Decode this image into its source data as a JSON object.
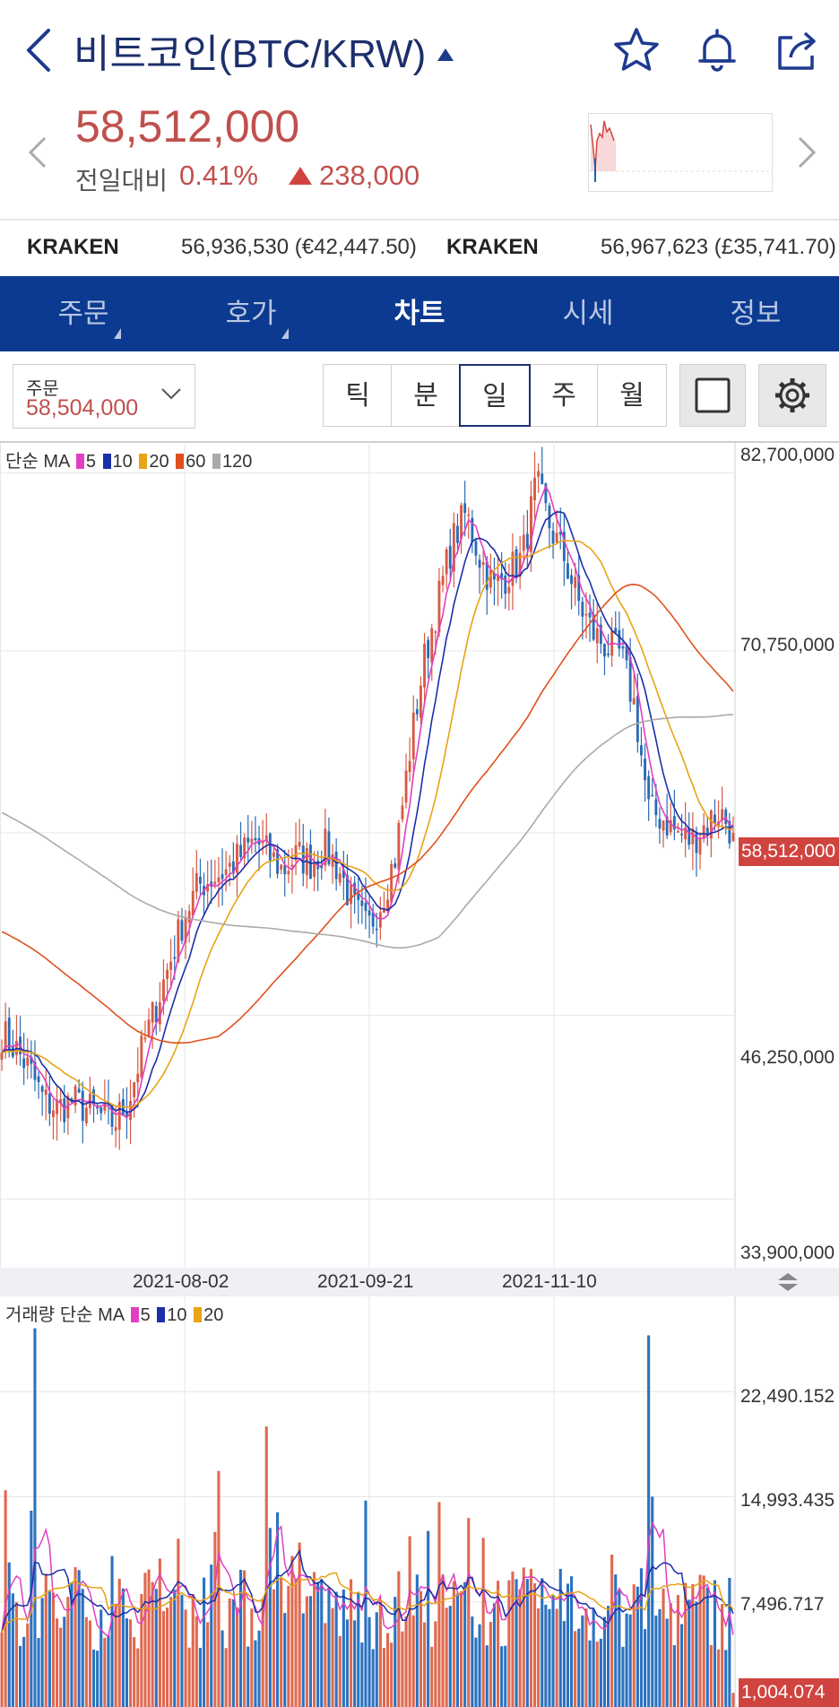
{
  "header": {
    "title": "비트코인(BTC/KRW)",
    "icons": [
      "back-arrow-icon",
      "star-icon",
      "bell-icon",
      "share-icon"
    ]
  },
  "quote": {
    "price": "58,512,000",
    "compare_label": "전일대비",
    "change_pct": "0.41%",
    "change_amount": "238,000",
    "color": "#c0504d"
  },
  "exchanges": [
    {
      "name": "KRAKEN",
      "value": "56,936,530 (€42,447.50)"
    },
    {
      "name": "KRAKEN",
      "value": "56,967,623 (£35,741.70)"
    }
  ],
  "tabs": [
    {
      "label": "주문",
      "has_menu": true
    },
    {
      "label": "호가",
      "has_menu": true
    },
    {
      "label": "차트",
      "active": true
    },
    {
      "label": "시세"
    },
    {
      "label": "정보"
    }
  ],
  "order": {
    "label": "주문",
    "value": "58,504,000"
  },
  "periods": [
    {
      "label": "틱"
    },
    {
      "label": "분"
    },
    {
      "label": "일",
      "selected": true
    },
    {
      "label": "주"
    },
    {
      "label": "월"
    }
  ],
  "price_chart": {
    "legend_prefix": "단순 MA",
    "ma": [
      {
        "period": "5",
        "color": "#e040c0"
      },
      {
        "period": "10",
        "color": "#1a2fa8"
      },
      {
        "period": "20",
        "color": "#e8a317"
      },
      {
        "period": "60",
        "color": "#e0501e"
      },
      {
        "period": "120",
        "color": "#aaaaaa"
      }
    ],
    "y_labels": [
      "82,700,000",
      "70,750,000",
      "46,250,000",
      "33,900,000"
    ],
    "current_price": "58,512,000",
    "dates": [
      "2021-08-02",
      "2021-09-21",
      "2021-11-10"
    ]
  },
  "volume_chart": {
    "legend_prefix": "거래량 단순 MA",
    "ma": [
      {
        "period": "5",
        "color": "#e040c0"
      },
      {
        "period": "10",
        "color": "#1a2fa8"
      },
      {
        "period": "20",
        "color": "#e8a317"
      }
    ],
    "y_labels": [
      "22,490.152",
      "14,993.435",
      "7,496.717"
    ],
    "current_volume": "1,004.074"
  },
  "chart_data": [
    {
      "type": "line",
      "title": "",
      "series": [
        {
          "name": "비트코인(BTC/KRW)",
          "values": [
            45000000,
            44000000,
            42500000,
            40500000,
            40000000,
            40500000,
            40000000,
            39500000,
            39000000,
            40500000,
            44000000,
            47000000,
            50000000,
            53000000,
            55000000,
            55500000,
            56000000,
            57000000,
            58000000,
            57000000,
            56000000,
            57000000,
            56500000,
            57500000,
            56000000,
            53500000,
            52000000,
            54000000,
            57000000,
            64000000,
            70000000,
            74000000,
            78000000,
            80000000,
            77000000,
            75000000,
            76000000,
            77000000,
            82000000,
            79000000,
            77000000,
            74000000,
            72000000,
            71000000,
            70500000,
            67000000,
            60000000,
            59500000,
            58500000,
            58000000,
            59000000,
            60000000,
            58512000
          ]
        }
      ],
      "ylim": [
        33900000,
        82700000
      ],
      "x_ticks": [
        "2021-08-02",
        "2021-09-21",
        "2021-11-10"
      ]
    },
    {
      "type": "bar",
      "title": "",
      "ylim": [
        0,
        22490.152
      ],
      "last_value": 1004.074
    }
  ]
}
